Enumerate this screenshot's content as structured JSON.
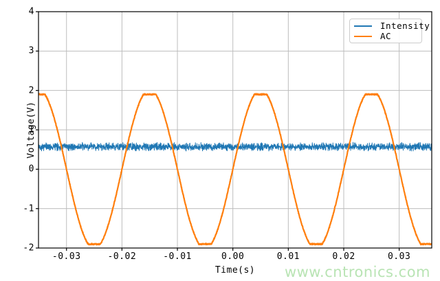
{
  "chart_data": {
    "type": "line",
    "title": "",
    "xlabel": "Time(s)",
    "ylabel": "Voltage(V)",
    "xlim": [
      -0.03505,
      0.03587
    ],
    "ylim": [
      -2,
      4
    ],
    "grid": true,
    "legend_position": "upper right",
    "x_ticks": {
      "values": [
        -0.03,
        -0.02,
        -0.01,
        0.0,
        0.01,
        0.02,
        0.03
      ],
      "labels": [
        "-0.03",
        "-0.02",
        "-0.01",
        "0.00",
        "0.01",
        "0.02",
        "0.03"
      ]
    },
    "y_ticks": {
      "values": [
        4,
        3,
        2,
        1,
        0,
        -1,
        -2
      ],
      "labels": [
        "4",
        "3",
        "2",
        "1",
        "0",
        "-1",
        "-2"
      ]
    },
    "series": [
      {
        "name": "Intensity",
        "color": "#1f77b4",
        "shape": "noisy-constant",
        "mean": 0.57,
        "noise_peak": 0.115,
        "line_width": 1.0
      },
      {
        "name": "AC",
        "color": "#ff7f0e",
        "shape": "clipped-sine",
        "amplitude": 2.02,
        "clip_level": 1.9,
        "period_s": 0.02,
        "peak_time_s": -0.035,
        "noise_peak": 0.02,
        "line_width": 2.2
      }
    ],
    "ac_samples_coarse": {
      "t": [
        -0.035,
        -0.0325,
        -0.03,
        -0.0275,
        -0.025,
        -0.0225,
        -0.02,
        -0.0175,
        -0.015,
        -0.0125,
        -0.01,
        -0.0075,
        -0.005,
        -0.0025,
        0.0,
        0.0025,
        0.005,
        0.0075,
        0.01,
        0.0125,
        0.015,
        0.0175,
        0.02,
        0.0225,
        0.025,
        0.0275,
        0.03,
        0.0325,
        0.035
      ],
      "v": [
        1.9,
        1.43,
        0.0,
        -1.43,
        -1.9,
        -1.43,
        0.0,
        1.43,
        1.9,
        1.43,
        0.0,
        -1.43,
        -1.9,
        -1.43,
        0.0,
        1.43,
        1.9,
        1.43,
        0.0,
        -1.43,
        -1.9,
        -1.43,
        0.0,
        1.43,
        1.9,
        1.43,
        0.0,
        -1.43,
        -1.9
      ],
      "intensity_mean_v": 0.57
    },
    "grid_color": "#bdbdbd",
    "spine_color": "#000000"
  },
  "legend": {
    "items": [
      {
        "label": "Intensity",
        "color": "#1f77b4"
      },
      {
        "label": "AC",
        "color": "#ff7f0e"
      }
    ]
  },
  "watermark": {
    "text": "www.cntronics.com",
    "color": "#b9e4b4"
  }
}
